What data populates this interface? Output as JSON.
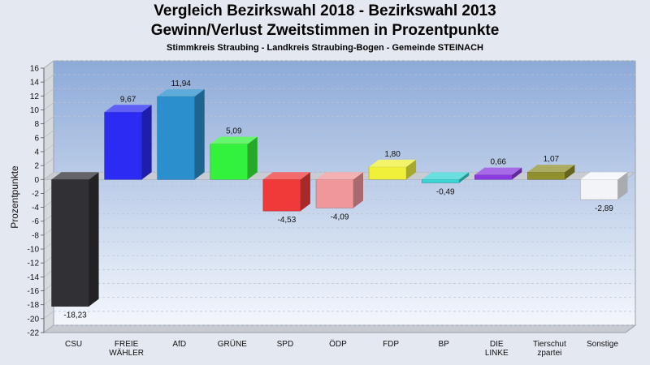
{
  "header": {
    "title": "Vergleich Bezirkswahl 2018 - Bezirkswahl 2013",
    "subtitle": "Gewinn/Verlust Zweitstimmen in Prozentpunkte",
    "subsubtitle": "Stimmkreis Straubing - Landkreis Straubing-Bogen - Gemeinde STEINACH"
  },
  "chart_data": {
    "type": "bar",
    "ylabel": "Prozentpunkte",
    "xlabel": "",
    "ylim": [
      -22,
      16
    ],
    "ytick_step": 2,
    "grid": "horizontal dashed",
    "categories": [
      [
        "CSU"
      ],
      [
        "FREIE",
        "WÄHLER"
      ],
      [
        "AfD"
      ],
      [
        "GRÜNE"
      ],
      [
        "SPD"
      ],
      [
        "ÖDP"
      ],
      [
        "FDP"
      ],
      [
        "BP"
      ],
      [
        "DIE",
        "LINKE"
      ],
      [
        "Tierschut",
        "zpartei"
      ],
      [
        "Sonstige"
      ]
    ],
    "values": [
      -18.23,
      9.67,
      11.94,
      5.09,
      -4.53,
      -4.09,
      1.8,
      -0.49,
      0.66,
      1.07,
      -2.89
    ],
    "value_labels": [
      "-18,23",
      "9,67",
      "11,94",
      "5,09",
      "-4,53",
      "-4,09",
      "1,80",
      "-0,49",
      "0,66",
      "1,07",
      "-2,89"
    ],
    "colors": [
      "#303035",
      "#2b2bf4",
      "#2a8fcc",
      "#33f23b",
      "#f03a3a",
      "#f0979a",
      "#f0f03a",
      "#3ad4d4",
      "#8a3ae0",
      "#8f8f2e",
      "#f2f4f8"
    ]
  }
}
